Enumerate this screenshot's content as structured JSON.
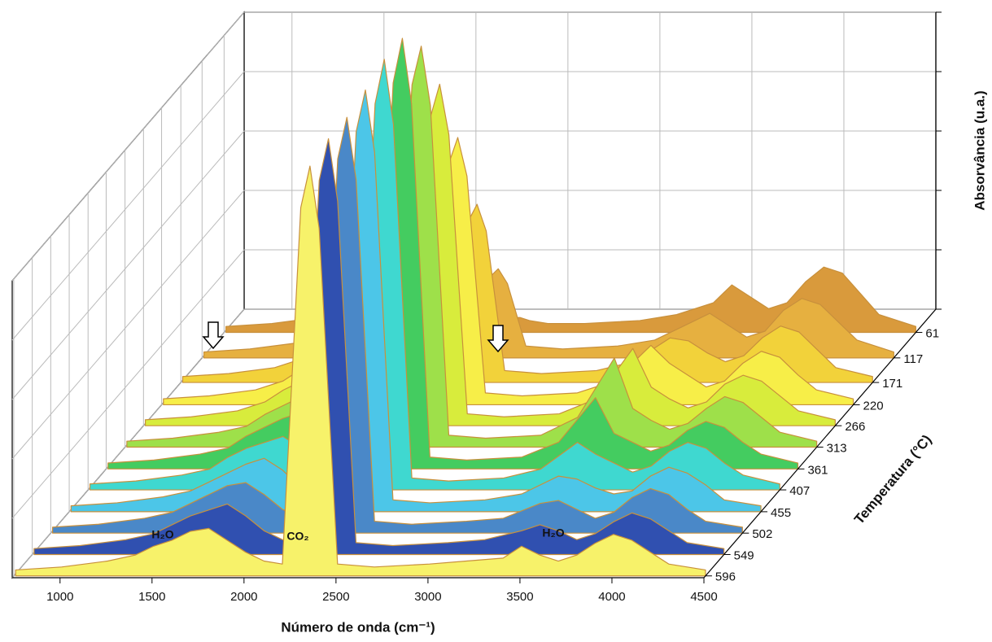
{
  "chart_data": {
    "type": "waterfall3d",
    "xlabel": "Número de onda (cm⁻¹)",
    "ylabel": "Temperatura (°C)",
    "zlabel": "Absorvância (u.a.)",
    "annotations": [
      "H₂O",
      "CO₂",
      "H₂O"
    ],
    "x": [
      750,
      1000,
      1250,
      1400,
      1500,
      1600,
      1700,
      1800,
      1900,
      2000,
      2100,
      2200,
      2300,
      2350,
      2400,
      2500,
      2700,
      3000,
      3200,
      3400,
      3500,
      3600,
      3700,
      3800,
      3900,
      4000,
      4100,
      4200,
      4300,
      4500
    ],
    "xlim": [
      740,
      4500
    ],
    "xticks": [
      1000,
      1500,
      2000,
      2500,
      3000,
      3500,
      4000,
      4500
    ],
    "ylim": [
      10,
      600
    ],
    "yticks": [
      61,
      117,
      171,
      220,
      266,
      313,
      361,
      407,
      455,
      502,
      549,
      596
    ],
    "zlim": [
      0,
      1
    ],
    "zticks": [
      0,
      0.2,
      0.4,
      0.6,
      0.8,
      1
    ],
    "grid": true,
    "spectra": [
      {
        "temperature": 61,
        "color": "#d99a3c",
        "values": [
          0.02,
          0.03,
          0.05,
          0.09,
          0.14,
          0.17,
          0.2,
          0.25,
          0.18,
          0.1,
          0.07,
          0.05,
          0.05,
          0.05,
          0.04,
          0.03,
          0.03,
          0.04,
          0.06,
          0.1,
          0.16,
          0.12,
          0.08,
          0.1,
          0.17,
          0.22,
          0.2,
          0.13,
          0.06,
          0.02
        ]
      },
      {
        "temperature": 117,
        "color": "#e6b040",
        "values": [
          0.02,
          0.03,
          0.05,
          0.08,
          0.13,
          0.16,
          0.19,
          0.22,
          0.17,
          0.1,
          0.07,
          0.05,
          0.27,
          0.3,
          0.25,
          0.04,
          0.03,
          0.04,
          0.06,
          0.12,
          0.15,
          0.11,
          0.07,
          0.09,
          0.16,
          0.2,
          0.18,
          0.12,
          0.06,
          0.02
        ]
      },
      {
        "temperature": 171,
        "color": "#f2d23a",
        "values": [
          0.02,
          0.03,
          0.05,
          0.08,
          0.12,
          0.16,
          0.2,
          0.21,
          0.16,
          0.1,
          0.06,
          0.05,
          0.54,
          0.6,
          0.51,
          0.04,
          0.03,
          0.04,
          0.07,
          0.15,
          0.14,
          0.1,
          0.07,
          0.09,
          0.15,
          0.19,
          0.17,
          0.11,
          0.05,
          0.02
        ]
      },
      {
        "temperature": 220,
        "color": "#f7ee48",
        "values": [
          0.02,
          0.03,
          0.05,
          0.08,
          0.12,
          0.15,
          0.18,
          0.2,
          0.16,
          0.1,
          0.06,
          0.04,
          0.81,
          0.9,
          0.77,
          0.04,
          0.03,
          0.04,
          0.08,
          0.2,
          0.14,
          0.1,
          0.06,
          0.08,
          0.14,
          0.18,
          0.16,
          0.1,
          0.05,
          0.02
        ]
      },
      {
        "temperature": 266,
        "color": "#d8ec3c",
        "values": [
          0.02,
          0.03,
          0.05,
          0.08,
          0.12,
          0.15,
          0.18,
          0.2,
          0.15,
          0.09,
          0.06,
          0.04,
          1.04,
          1.15,
          0.98,
          0.04,
          0.03,
          0.04,
          0.09,
          0.26,
          0.13,
          0.09,
          0.06,
          0.08,
          0.14,
          0.17,
          0.15,
          0.1,
          0.05,
          0.02
        ]
      },
      {
        "temperature": 313,
        "color": "#9ee04a",
        "values": [
          0.02,
          0.03,
          0.05,
          0.07,
          0.11,
          0.14,
          0.17,
          0.19,
          0.15,
          0.09,
          0.06,
          0.04,
          1.22,
          1.35,
          1.15,
          0.04,
          0.03,
          0.04,
          0.1,
          0.3,
          0.13,
          0.09,
          0.06,
          0.08,
          0.13,
          0.17,
          0.15,
          0.1,
          0.05,
          0.02
        ]
      },
      {
        "temperature": 361,
        "color": "#44cc60",
        "values": [
          0.02,
          0.03,
          0.05,
          0.07,
          0.11,
          0.14,
          0.17,
          0.19,
          0.14,
          0.09,
          0.06,
          0.04,
          1.3,
          1.45,
          1.23,
          0.04,
          0.03,
          0.04,
          0.09,
          0.24,
          0.12,
          0.09,
          0.06,
          0.08,
          0.13,
          0.16,
          0.14,
          0.09,
          0.05,
          0.02
        ]
      },
      {
        "temperature": 407,
        "color": "#3fd8d0",
        "values": [
          0.02,
          0.03,
          0.05,
          0.07,
          0.11,
          0.14,
          0.16,
          0.18,
          0.14,
          0.09,
          0.06,
          0.04,
          1.3,
          1.45,
          1.23,
          0.04,
          0.03,
          0.04,
          0.07,
          0.16,
          0.12,
          0.09,
          0.06,
          0.08,
          0.13,
          0.16,
          0.14,
          0.09,
          0.05,
          0.02
        ]
      },
      {
        "temperature": 455,
        "color": "#4cc6e8",
        "values": [
          0.02,
          0.03,
          0.05,
          0.07,
          0.1,
          0.13,
          0.16,
          0.18,
          0.14,
          0.08,
          0.05,
          0.04,
          1.28,
          1.42,
          1.21,
          0.04,
          0.03,
          0.04,
          0.06,
          0.12,
          0.11,
          0.08,
          0.06,
          0.07,
          0.12,
          0.15,
          0.13,
          0.09,
          0.04,
          0.02
        ]
      },
      {
        "temperature": 502,
        "color": "#4a88c8",
        "values": [
          0.02,
          0.03,
          0.05,
          0.07,
          0.1,
          0.13,
          0.16,
          0.17,
          0.13,
          0.08,
          0.05,
          0.04,
          1.26,
          1.4,
          1.19,
          0.04,
          0.03,
          0.04,
          0.05,
          0.1,
          0.11,
          0.08,
          0.05,
          0.07,
          0.12,
          0.15,
          0.13,
          0.08,
          0.04,
          0.02
        ]
      },
      {
        "temperature": 549,
        "color": "#3050b0",
        "values": [
          0.02,
          0.03,
          0.05,
          0.07,
          0.1,
          0.13,
          0.15,
          0.17,
          0.13,
          0.08,
          0.05,
          0.04,
          1.26,
          1.4,
          1.19,
          0.04,
          0.03,
          0.04,
          0.05,
          0.08,
          0.1,
          0.08,
          0.05,
          0.07,
          0.11,
          0.14,
          0.12,
          0.08,
          0.04,
          0.02
        ]
      },
      {
        "temperature": 596,
        "color": "#f7f26a",
        "values": [
          0.02,
          0.03,
          0.05,
          0.07,
          0.1,
          0.12,
          0.15,
          0.16,
          0.12,
          0.08,
          0.05,
          0.04,
          1.24,
          1.38,
          1.17,
          0.04,
          0.03,
          0.04,
          0.05,
          0.06,
          0.1,
          0.07,
          0.05,
          0.07,
          0.11,
          0.14,
          0.12,
          0.08,
          0.04,
          0.02
        ]
      }
    ]
  }
}
